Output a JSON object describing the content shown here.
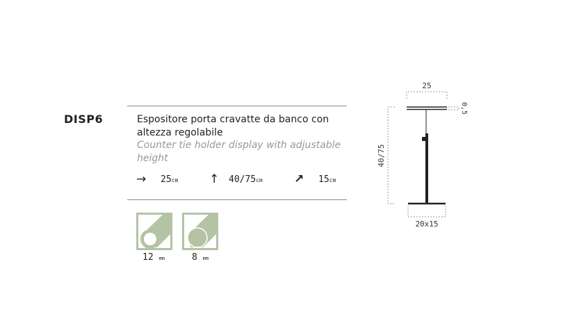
{
  "product": {
    "code": "DISP6",
    "title_it": "Espositore porta cravatte da banco con altezza regolabile",
    "title_en": "Counter tie holder display with adjustable height",
    "dimensions": [
      {
        "icon": "arrow-right-icon",
        "value": "25",
        "unit": "cm"
      },
      {
        "icon": "arrow-up-icon",
        "value": "40/75",
        "unit": "cm"
      },
      {
        "icon": "arrow-diagonal-icon",
        "value": "15",
        "unit": "cm"
      }
    ],
    "tubes": [
      {
        "value": "12",
        "unit": "mm",
        "type": "hollow"
      },
      {
        "value": "8",
        "unit": "mm",
        "type": "solid"
      }
    ],
    "accent_color": "#b3c3a3"
  },
  "drawing": {
    "top_width": "25",
    "thickness": "0,5",
    "height": "40/75",
    "base": "20x15"
  }
}
